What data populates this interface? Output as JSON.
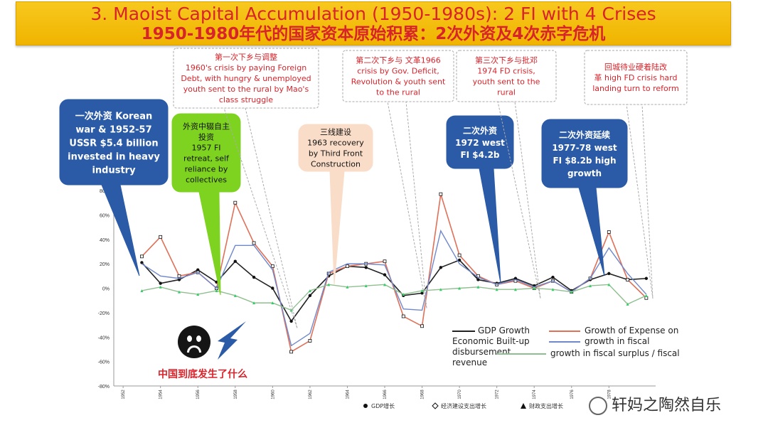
{
  "header": {
    "title_en": "3. Maoist Capital Accumulation (1950-1980s): 2 FI with 4 Crises",
    "title_cn": "1950-1980年代的国家资本原始积累：2次外资及4次赤字危机"
  },
  "callouts": [
    {
      "id": "korean-war",
      "lines": [
        "一次外资 Korean",
        "war & 1952-57",
        "USSR $5.4 billion",
        "invested in heavy",
        "industry"
      ]
    },
    {
      "id": "fi-retreat",
      "lines": [
        "外资中辍自主",
        "投资",
        "1957 FI",
        "retreat, self",
        "reliance by",
        "collectives"
      ]
    },
    {
      "id": "crisis-1960",
      "lines": [
        "第一次下乡与调整",
        "1960's crisis by paying Foreign",
        "Debt, with hungry & unemployed",
        "youth sent to the rural by Mao's",
        "class struggle"
      ]
    },
    {
      "id": "third-front",
      "lines": [
        "三线建设",
        "1963 recovery",
        "by Third Front",
        "Construction"
      ]
    },
    {
      "id": "crisis-1966",
      "lines": [
        "第二次下乡与 文革1966",
        "crisis by Gov. Deficit,",
        "Revolution & youth sent",
        "to the rural"
      ]
    },
    {
      "id": "fi-1972",
      "lines": [
        "二次外资",
        "1972  west",
        "FI $4.2b"
      ]
    },
    {
      "id": "crisis-1974",
      "lines": [
        "第三次下乡与批邓",
        "1974 FD crisis,",
        "youth sent to the",
        "rural"
      ]
    },
    {
      "id": "fi-1977",
      "lines": [
        "二次外资延续",
        "1977-78 west",
        "FI $8.2b high",
        "growth"
      ]
    },
    {
      "id": "reform",
      "lines": [
        "回城待业硬着陆改",
        "革 high FD crisis hard",
        "landing turn to reform"
      ]
    }
  ],
  "legend": {
    "gdp": "GDP Growth",
    "econ": "Economic Built-up",
    "disb": "disbursement",
    "expense": "Growth of  Expense on",
    "fiscal": "growth in fiscal",
    "surplus": "growth in fiscal surplus / fiscal",
    "revenue": "revenue"
  },
  "bottom_legend": [
    "GDP增长",
    "经济建设支出增长",
    "财政支出增长"
  ],
  "question": "中国到底发生了什么",
  "watermark": "轩妈之陶然自乐",
  "colors": {
    "banner": "#f2b90c",
    "title_red": "#d9232a",
    "callout_blue": "#2b5aa7",
    "callout_green": "#7ed321",
    "callout_peach": "#f9ddc8",
    "gdp": "#222222",
    "expense": "#e07058",
    "fiscal": "#6f88cc",
    "surplus": "#8fbf8f"
  },
  "chart_data": {
    "type": "line",
    "ylim": [
      -80,
      80
    ],
    "yticks": [
      "80%",
      "60%",
      "40%",
      "20%",
      "0%",
      "-20%",
      "-40%",
      "-60%",
      "-80%"
    ],
    "xticks": [
      "1952",
      "1954",
      "1956",
      "1958",
      "1960",
      "1962",
      "1964",
      "1966",
      "1968",
      "1970",
      "1972",
      "1974",
      "1976",
      "1978"
    ],
    "x": [
      1953,
      1954,
      1955,
      1956,
      1957,
      1958,
      1959,
      1960,
      1961,
      1962,
      1963,
      1964,
      1965,
      1966,
      1967,
      1968,
      1969,
      1970,
      1971,
      1972,
      1973,
      1974,
      1975,
      1976,
      1977,
      1978,
      1979,
      1980
    ],
    "series": [
      {
        "name": "GDP Growth",
        "values": [
          21,
          4,
          7,
          15,
          5,
          22,
          9,
          0,
          -27,
          -6,
          10,
          18,
          17,
          11,
          -6,
          -4,
          17,
          23,
          7,
          4,
          8,
          2,
          9,
          -2,
          7,
          12,
          7,
          8
        ]
      },
      {
        "name": "Growth of Expense on Economic Built-up disbursement",
        "values": [
          26,
          42,
          10,
          13,
          0,
          70,
          37,
          18,
          -52,
          -43,
          12,
          18,
          20,
          22,
          -23,
          -31,
          77,
          27,
          10,
          3,
          6,
          0,
          6,
          -3,
          8,
          46,
          7,
          -8
        ]
      },
      {
        "name": "growth in fiscal",
        "values": [
          20,
          10,
          8,
          13,
          0,
          35,
          35,
          15,
          -47,
          -37,
          13,
          20,
          20,
          19,
          -17,
          -18,
          47,
          20,
          9,
          3,
          7,
          1,
          6,
          -3,
          8,
          33,
          12,
          -5
        ]
      },
      {
        "name": "growth in fiscal surplus / fiscal revenue",
        "values": [
          -2,
          1,
          -3,
          -5,
          -2,
          -6,
          -12,
          -12,
          -18,
          -2,
          3,
          1,
          2,
          3,
          -5,
          -2,
          -1,
          0,
          1,
          -1,
          -1,
          0,
          -1,
          -3,
          2,
          3,
          -13,
          -6
        ]
      }
    ]
  }
}
